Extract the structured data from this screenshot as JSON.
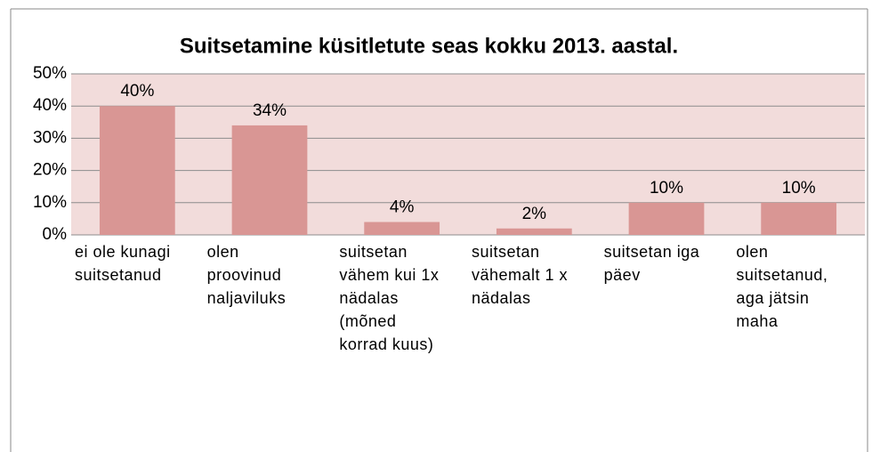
{
  "chart_data": {
    "type": "bar",
    "title": "Suitsetamine küsitletute seas kokku 2013. aastal.",
    "categories": [
      "ei ole kunagi suitsetanud",
      "olen proovinud naljaviluks",
      "suitsetan vähem kui 1x nädalas (mõned korrad kuus)",
      "suitsetan vähemalt 1 x nädalas",
      "suitsetan iga päev",
      "olen suitsetanud, aga jätsin maha"
    ],
    "values": [
      40,
      34,
      4,
      2,
      10,
      10
    ],
    "value_labels": [
      "40%",
      "34%",
      "4%",
      "2%",
      "10%",
      "10%"
    ],
    "color": "#d99694",
    "ylim": [
      0,
      50
    ],
    "yticks": [
      {
        "value": 0,
        "label": "0%"
      },
      {
        "value": 10,
        "label": "10%"
      },
      {
        "value": 20,
        "label": "20%"
      },
      {
        "value": 30,
        "label": "30%"
      },
      {
        "value": 40,
        "label": "40%"
      },
      {
        "value": 50,
        "label": "50%"
      }
    ],
    "grid": true
  }
}
